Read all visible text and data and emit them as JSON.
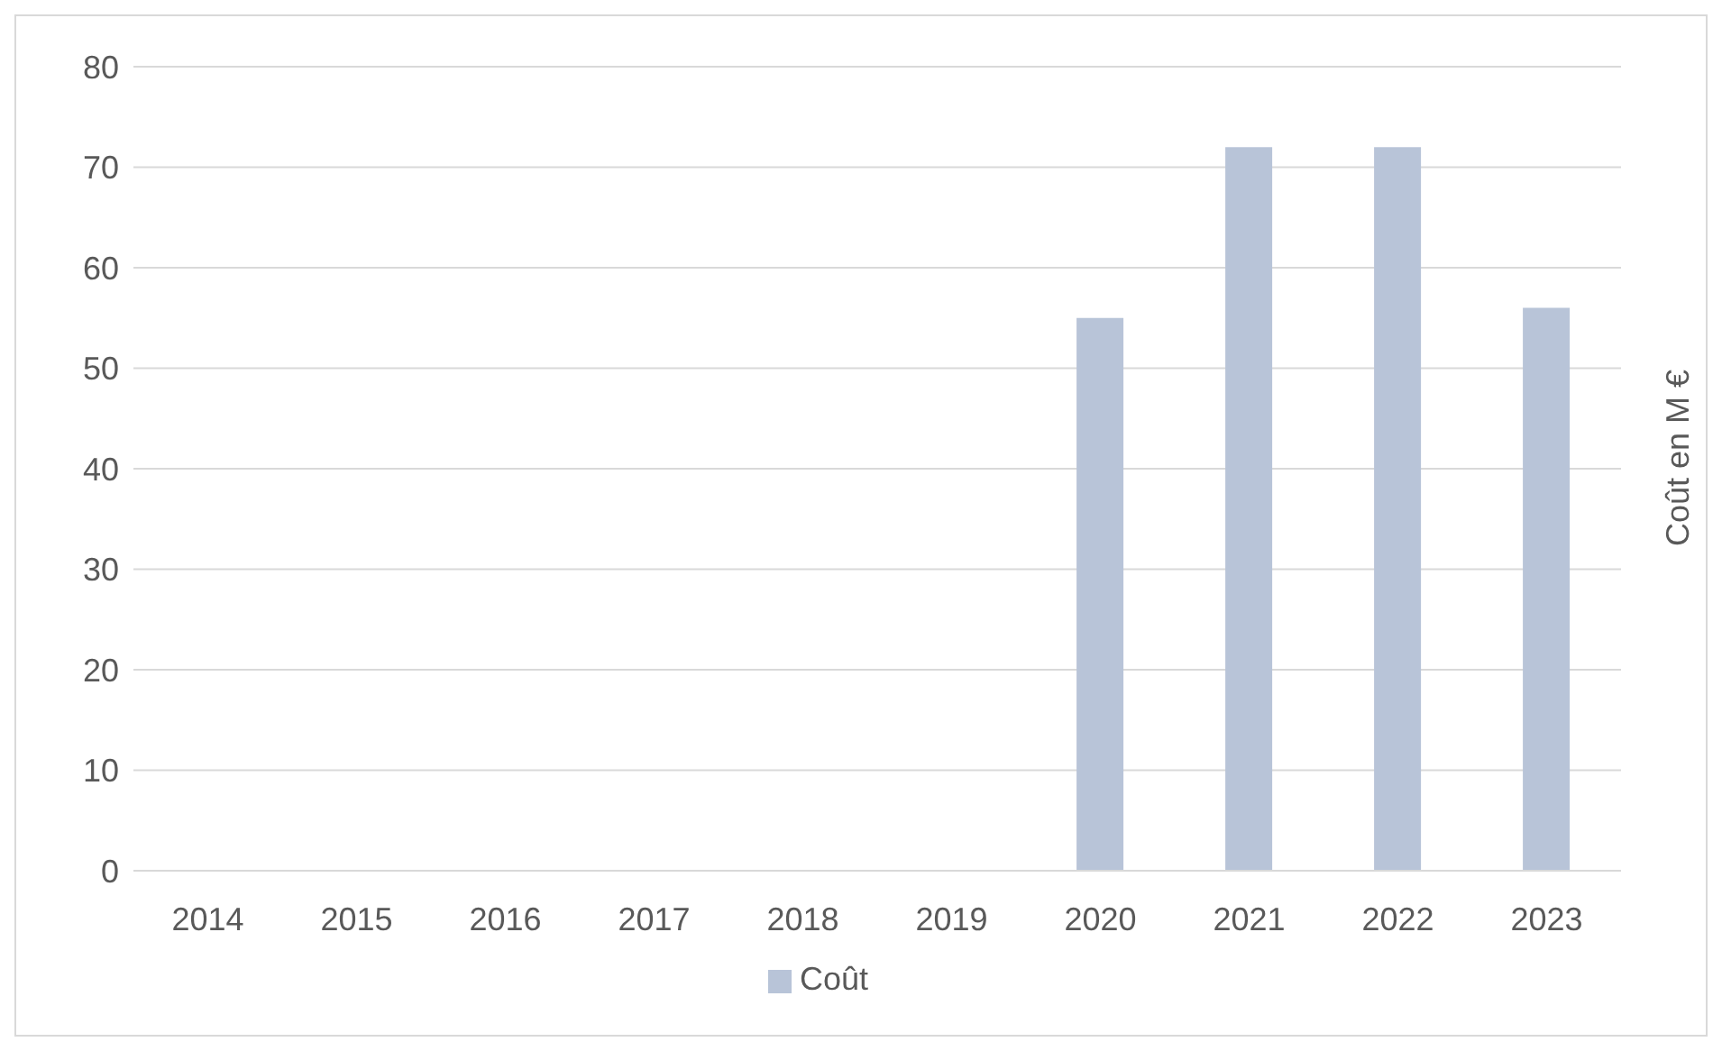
{
  "chart_data": {
    "type": "bar",
    "ylabel": "Coût en M €",
    "categories": [
      "2014",
      "2015",
      "2016",
      "2017",
      "2018",
      "2019",
      "2020",
      "2021",
      "2022",
      "2023"
    ],
    "series": [
      {
        "name": "Coût",
        "color": "#b8c4d8",
        "values": [
          null,
          null,
          null,
          null,
          null,
          null,
          55,
          72,
          72,
          56
        ]
      }
    ],
    "ylim": [
      0,
      80
    ],
    "yticks": [
      0,
      10,
      20,
      30,
      40,
      50,
      60,
      70,
      80
    ],
    "grid": "y",
    "legend": "bottom"
  }
}
